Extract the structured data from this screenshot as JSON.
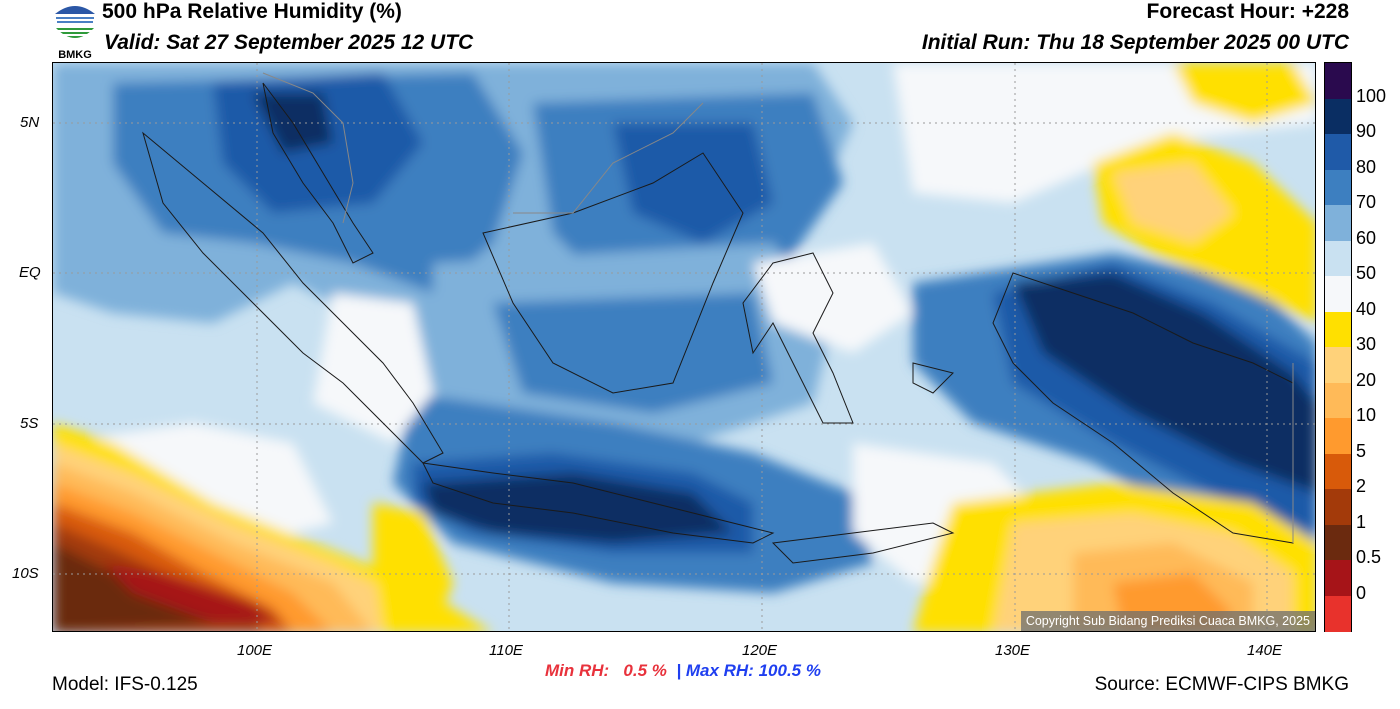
{
  "header": {
    "title": "500 hPa Relative Humidity (%)",
    "valid": "Valid: Sat 27 September 2025 12 UTC",
    "forecast_hour": "Forecast Hour: +228",
    "initial_run": "Initial Run: Thu 18 September 2025 00 UTC",
    "logo_text": "BMKG"
  },
  "map": {
    "lat_labels": [
      "5N",
      "EQ",
      "5S",
      "10S"
    ],
    "lon_labels": [
      "100E",
      "110E",
      "120E",
      "130E",
      "140E"
    ],
    "copyright": "Copyright Sub Bidang Prediksi Cuaca BMKG, 2025"
  },
  "colorbar": {
    "labels": [
      "100",
      "90",
      "80",
      "70",
      "60",
      "50",
      "40",
      "30",
      "20",
      "10",
      "5",
      "2",
      "1",
      "0.5",
      "0"
    ],
    "colors": [
      "#2a0a4e",
      "#0a2e63",
      "#1f5aa8",
      "#3d7fc0",
      "#7fb1da",
      "#c9e1f1",
      "#f6f8fa",
      "#ffe000",
      "#ffd27a",
      "#ffba58",
      "#ff9a2e",
      "#d85a0a",
      "#a33a0a",
      "#6b2a0f",
      "#a61418",
      "#e8322c"
    ]
  },
  "stats": {
    "min_label": "Min RH:",
    "min_value": "0.5 %",
    "separator": "|",
    "max_label": "Max RH:",
    "max_value": "100.5 %"
  },
  "footer": {
    "model": "Model: IFS-0.125",
    "source": "Source: ECMWF-CIPS BMKG"
  }
}
